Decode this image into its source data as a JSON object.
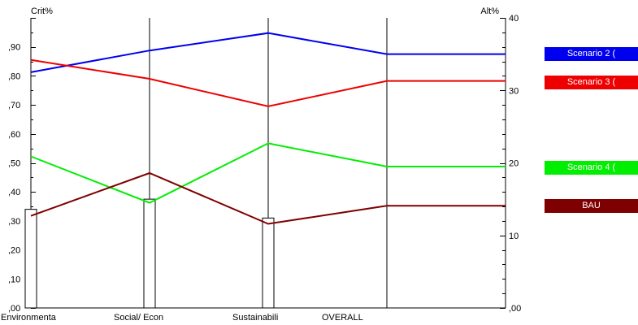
{
  "chart_data": {
    "type": "line",
    "left_axis_title": "Crit%",
    "right_axis_title": "Alt%",
    "categories": [
      "Environmenta",
      "Social/ Econ",
      "Sustainabili",
      "OVERALL"
    ],
    "left_ticks": [
      ",00",
      ",10",
      ",20",
      ",30",
      ",40",
      ",50",
      ",60",
      ",70",
      ",80",
      ",90"
    ],
    "right_ticks": [
      ",00",
      "10",
      "20",
      "30",
      "40"
    ],
    "left_ylim": [
      0,
      1.0
    ],
    "right_ylim": [
      0,
      40
    ],
    "criteria_weights": [
      0.34,
      0.375,
      0.31
    ],
    "series": [
      {
        "name": "Scenario 2 (",
        "color": "#0000ee",
        "values": [
          32.5,
          35.5,
          37.9,
          35.0
        ]
      },
      {
        "name": "Scenario 3 (",
        "color": "#ee0000",
        "values": [
          34.2,
          31.6,
          27.8,
          31.3
        ]
      },
      {
        "name": "Scenario 4 (",
        "color": "#00ee00",
        "values": [
          20.9,
          14.5,
          22.7,
          19.5
        ]
      },
      {
        "name": "BAU",
        "color": "#7f0000",
        "values": [
          12.7,
          18.6,
          11.6,
          14.1
        ]
      }
    ],
    "grid": false,
    "legend_placement": "right"
  }
}
